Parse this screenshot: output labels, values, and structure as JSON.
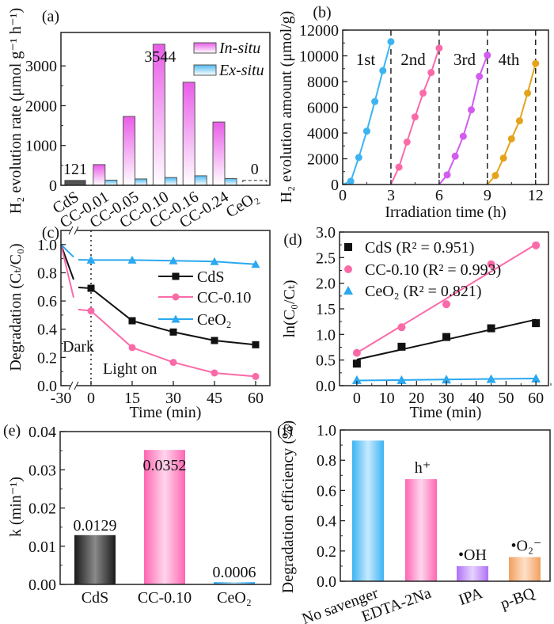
{
  "chart_data": [
    {
      "panel": "(a)",
      "type": "bar",
      "ylabel": "H₂ evolution rate (μmol g⁻¹ h⁻¹)",
      "xlabel": "",
      "ylim": [
        0,
        3840
      ],
      "yticks": [
        0,
        1000,
        2000,
        3000
      ],
      "categories": [
        "CdS",
        "CC-0.01",
        "CC-0.05",
        "CC-0.10",
        "CC-0.16",
        "CC-0.24",
        "CeO₂"
      ],
      "series": [
        {
          "name": "In-situ",
          "color": "#e95ce8",
          "values": [
            121,
            520,
            1730,
            3544,
            2590,
            1590,
            0
          ]
        },
        {
          "name": "Ex-situ",
          "color": "#4fb9f0",
          "values": [
            null,
            130,
            160,
            195,
            240,
            170,
            null
          ]
        }
      ],
      "cds_color": "#555555",
      "annotations": [
        {
          "category": "CdS",
          "text": "121"
        },
        {
          "category": "CC-0.10",
          "text": "3544"
        },
        {
          "category": "CeO₂",
          "text": "0"
        }
      ],
      "legend": "top-right"
    },
    {
      "panel": "(b)",
      "type": "line",
      "ylabel": "H₂ evolution amount (μmol/g)",
      "xlabel": "Irradiation time (h)",
      "xlim": [
        0,
        12.8
      ],
      "ylim": [
        0,
        12000
      ],
      "xticks": [
        0,
        3,
        6,
        9,
        12
      ],
      "yticks": [
        0,
        2000,
        4000,
        6000,
        8000,
        10000,
        12000
      ],
      "cycle_dividers": [
        3,
        6,
        9,
        12
      ],
      "series": [
        {
          "name": "1st",
          "color": "#3db4f2",
          "x": [
            0,
            0.5,
            1,
            1.5,
            2,
            2.5,
            3
          ],
          "y": [
            0,
            250,
            2100,
            4150,
            6450,
            8850,
            11100
          ]
        },
        {
          "name": "2nd",
          "color": "#fb6aa8",
          "x": [
            3,
            3.5,
            4,
            4.5,
            5,
            5.5,
            6
          ],
          "y": [
            0,
            1350,
            3300,
            5250,
            7100,
            8700,
            10600
          ]
        },
        {
          "name": "3rd",
          "color": "#d25cf0",
          "x": [
            6,
            6.5,
            7,
            7.5,
            8,
            8.5,
            9
          ],
          "y": [
            0,
            750,
            2200,
            3750,
            5800,
            8400,
            10050
          ]
        },
        {
          "name": "4th",
          "color": "#e3a41c",
          "x": [
            9,
            9.5,
            10,
            10.5,
            11,
            11.5,
            12
          ],
          "y": [
            0,
            700,
            2050,
            3550,
            4950,
            7100,
            9400
          ]
        }
      ]
    },
    {
      "panel": "(c)",
      "type": "line",
      "ylabel": "Degradation (Cₜ/C₀)",
      "xlabel": "Time (min)",
      "ylim": [
        0,
        1.1
      ],
      "xticks": [
        -30,
        0,
        15,
        30,
        45,
        60
      ],
      "yticks": [
        0.0,
        0.2,
        0.4,
        0.6,
        0.8,
        1.0
      ],
      "axis_break": "between -30 and 0",
      "x": [
        -30,
        0,
        15,
        30,
        45,
        60
      ],
      "series": [
        {
          "name": "CdS",
          "color": "#111111",
          "marker": "square",
          "y": [
            1.0,
            0.69,
            0.46,
            0.38,
            0.32,
            0.29
          ]
        },
        {
          "name": "CC-0.10",
          "color": "#fb6aa8",
          "marker": "circle",
          "y": [
            1.0,
            0.53,
            0.27,
            0.165,
            0.09,
            0.065
          ]
        },
        {
          "name": "CeO₂",
          "color": "#2aa8f0",
          "marker": "triangle",
          "y": [
            1.0,
            0.89,
            0.89,
            0.885,
            0.88,
            0.86
          ]
        }
      ],
      "annotations": {
        "dark": "Dark",
        "light": "Light on"
      },
      "legend": "right"
    },
    {
      "panel": "(d)",
      "type": "scatter",
      "ylabel": "ln(C₀/Cₜ)",
      "xlabel": "Time (min)",
      "xlim": [
        -5.8,
        64.2
      ],
      "ylim": [
        0,
        3.0
      ],
      "xticks": [
        0,
        10,
        20,
        30,
        40,
        50,
        60
      ],
      "yticks": [
        0.0,
        0.5,
        1.0,
        1.5,
        2.0,
        2.5,
        3.0
      ],
      "x": [
        0,
        15,
        30,
        45,
        60
      ],
      "series": [
        {
          "name": "CdS (R² = 0.951)",
          "color": "#111111",
          "marker": "square",
          "y": [
            0.43,
            0.76,
            0.95,
            1.12,
            1.22
          ],
          "fit": [
            0.51,
            1.29
          ]
        },
        {
          "name": "CC-0.10 (R² = 0.993)",
          "color": "#fb6aa8",
          "marker": "circle",
          "y": [
            0.64,
            1.14,
            1.59,
            2.37,
            2.74
          ],
          "fit": [
            0.64,
            2.76
          ]
        },
        {
          "name": "CeO₂ (R² = 0.821)",
          "color": "#2aa8f0",
          "marker": "triangle",
          "y": [
            0.11,
            0.11,
            0.12,
            0.13,
            0.14
          ],
          "fit": [
            0.1,
            0.14
          ]
        }
      ],
      "legend": "top-left"
    },
    {
      "panel": "(e)",
      "type": "bar",
      "ylabel": "k (min⁻¹)",
      "xlabel": "",
      "ylim": [
        0,
        0.04
      ],
      "yticks": [
        0.0,
        0.01,
        0.02,
        0.03,
        0.04
      ],
      "categories": [
        "CdS",
        "CC-0.10",
        "CeO₂"
      ],
      "values": [
        0.0129,
        0.0352,
        0.0006
      ],
      "labels": [
        "0.0129",
        "0.0352",
        "0.0006"
      ],
      "colors": [
        "#1a1a1a",
        "#ff66b3",
        "#2aa8f0"
      ]
    },
    {
      "panel": "(f)",
      "type": "bar",
      "ylabel": "Degradation efficiency (%)",
      "xlabel": "",
      "ylim": [
        0,
        1.0
      ],
      "yticks": [
        0.0,
        0.2,
        0.4,
        0.6,
        0.8,
        1.0
      ],
      "categories": [
        "No savenger",
        "EDTA-2Na",
        "IPA",
        "p-BQ"
      ],
      "values": [
        0.93,
        0.675,
        0.1,
        0.16
      ],
      "labels": [
        "",
        "h⁺",
        "•OH",
        "•O₂⁻"
      ],
      "colors": [
        "#3db4f2",
        "#ff66b3",
        "#b070f5",
        "#f0a060"
      ]
    }
  ]
}
